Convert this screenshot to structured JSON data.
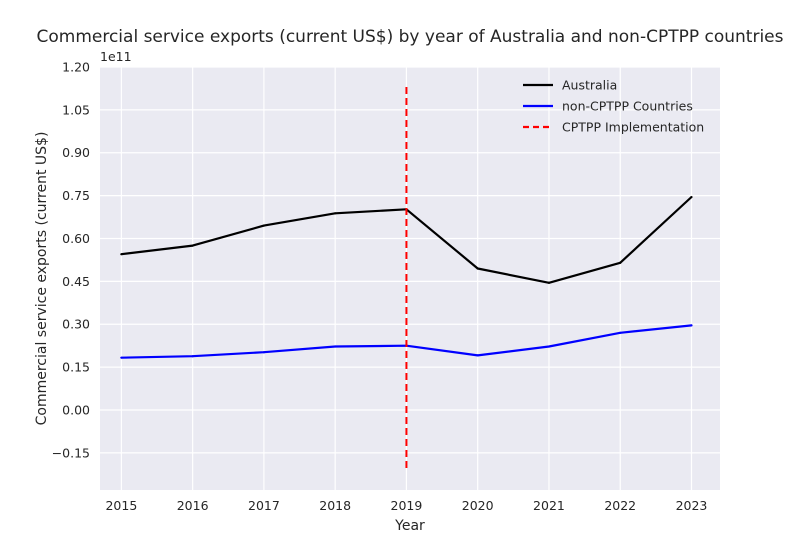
{
  "chart_data": {
    "type": "line",
    "title": "Commercial service exports (current US$) by year of Australia and non-CPTPP countries",
    "xlabel": "Year",
    "ylabel": "Commercial service exports (current US$)",
    "y_scale_label": "1e11",
    "x": [
      2015,
      2016,
      2017,
      2018,
      2019,
      2020,
      2021,
      2022,
      2023
    ],
    "x_tick_labels": [
      "2015",
      "2016",
      "2017",
      "2018",
      "2019",
      "2020",
      "2021",
      "2022",
      "2023"
    ],
    "xlim": [
      2014.7,
      2023.4
    ],
    "ylim": [
      -0.28,
      1.2
    ],
    "y_ticks": [
      -0.15,
      0.0,
      0.15,
      0.3,
      0.45,
      0.6,
      0.75,
      0.9,
      1.05,
      1.2
    ],
    "y_tick_labels": [
      "−0.15",
      "0.00",
      "0.15",
      "0.30",
      "0.45",
      "0.60",
      "0.75",
      "0.90",
      "1.05",
      "1.20"
    ],
    "grid": true,
    "legend_position": "top-right",
    "series": [
      {
        "name": "Australia",
        "color": "#000000",
        "values": [
          0.545,
          0.575,
          0.645,
          0.688,
          0.702,
          0.495,
          0.445,
          0.515,
          0.745
        ]
      },
      {
        "name": "non-CPTPP Countries",
        "color": "#0000ff",
        "values": [
          0.183,
          0.188,
          0.202,
          0.222,
          0.225,
          0.191,
          0.222,
          0.27,
          0.296
        ]
      }
    ],
    "annotations": [
      {
        "name": "CPTPP Implementation",
        "type": "vertical-dashed-line",
        "x": 2019,
        "y_range": [
          -0.21,
          1.13
        ],
        "color": "#ff0000"
      }
    ]
  }
}
